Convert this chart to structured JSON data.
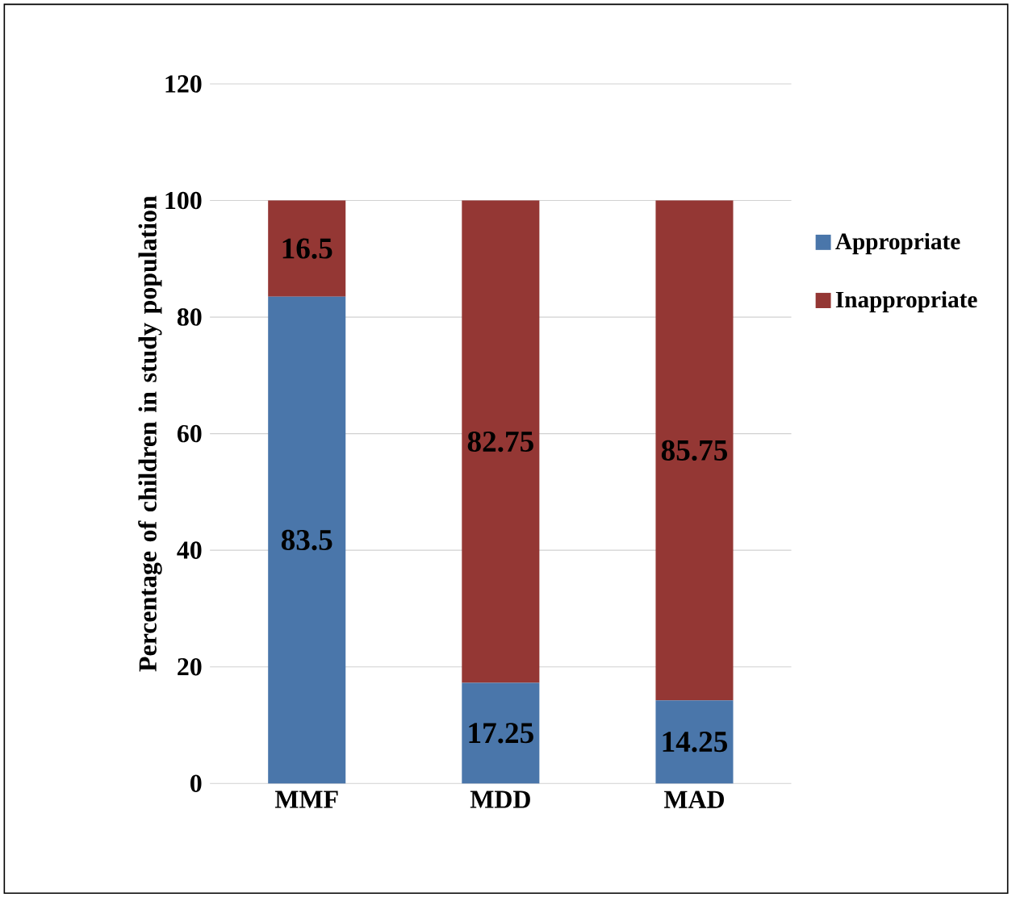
{
  "chart_data": {
    "type": "bar",
    "stacked": true,
    "ylabel": "Percentage of children in study population",
    "categories": [
      "MMF",
      "MDD",
      "MAD"
    ],
    "series": [
      {
        "name": "Appropriate",
        "color": "#4a76aa",
        "values": [
          83.5,
          17.25,
          14.25
        ]
      },
      {
        "name": "Inappropriate",
        "color": "#943734",
        "values": [
          16.5,
          82.75,
          85.75
        ]
      }
    ],
    "ylim": [
      0,
      120
    ],
    "yticks": [
      0,
      20,
      40,
      60,
      80,
      100,
      120
    ],
    "grid": "y",
    "legend": "right",
    "data_labels": true
  }
}
